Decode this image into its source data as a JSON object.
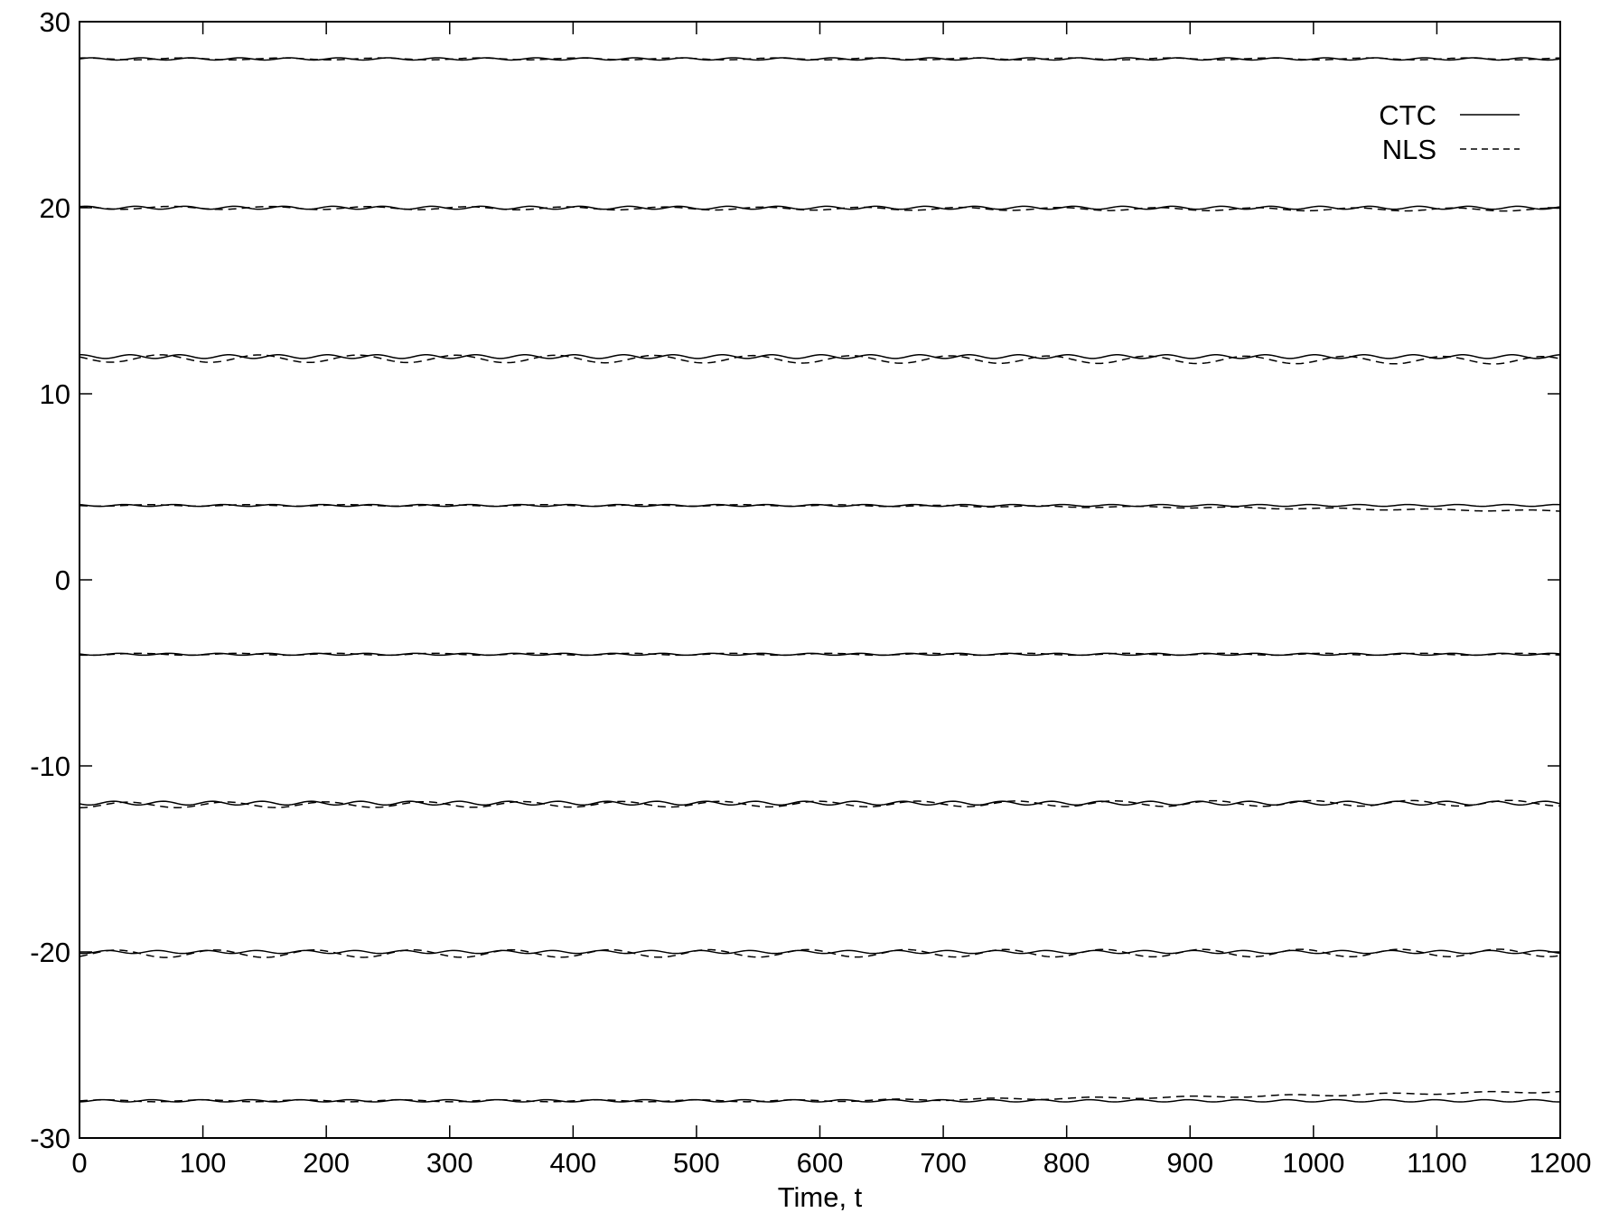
{
  "chart_data": {
    "type": "line",
    "title": "",
    "xlabel": "Time, t",
    "ylabel": "",
    "xlim": [
      0,
      1200
    ],
    "ylim": [
      -30,
      30
    ],
    "xticks": [
      0,
      100,
      200,
      300,
      400,
      500,
      600,
      700,
      800,
      900,
      1000,
      1100,
      1200
    ],
    "yticks": [
      -30,
      -20,
      -10,
      0,
      10,
      20,
      30
    ],
    "grid": false,
    "legend_position": "top-right",
    "legend": [
      "CTC",
      "NLS"
    ],
    "series": [
      {
        "name": "CTC",
        "style": "solid",
        "color": "#000000",
        "oscillation_period": 40,
        "tracks": [
          {
            "x": [
              0,
              1200
            ],
            "y": [
              28,
              28
            ],
            "amplitude": 0.06
          },
          {
            "x": [
              0,
              1200
            ],
            "y": [
              20,
              20
            ],
            "amplitude": 0.08
          },
          {
            "x": [
              0,
              1200
            ],
            "y": [
              12,
              12
            ],
            "amplitude": 0.1
          },
          {
            "x": [
              0,
              1200
            ],
            "y": [
              4,
              4
            ],
            "amplitude": 0.05
          },
          {
            "x": [
              0,
              1200
            ],
            "y": [
              -4,
              -4
            ],
            "amplitude": 0.05
          },
          {
            "x": [
              0,
              1200
            ],
            "y": [
              -12,
              -12
            ],
            "amplitude": 0.1
          },
          {
            "x": [
              0,
              1200
            ],
            "y": [
              -20,
              -20
            ],
            "amplitude": 0.08
          },
          {
            "x": [
              0,
              1200
            ],
            "y": [
              -28,
              -28
            ],
            "amplitude": 0.06
          }
        ]
      },
      {
        "name": "NLS",
        "style": "dashed",
        "color": "#000000",
        "oscillation_period": 80,
        "tracks": [
          {
            "x": [
              0,
              1200
            ],
            "y": [
              28,
              28
            ],
            "amplitude": 0.05
          },
          {
            "x": [
              0,
              1200
            ],
            "y": [
              20,
              19.9
            ],
            "amplitude": 0.08
          },
          {
            "x": [
              0,
              1200
            ],
            "y": [
              11.9,
              11.8
            ],
            "amplitude": 0.2
          },
          {
            "x": [
              0,
              600,
              900,
              1200
            ],
            "y": [
              4,
              4,
              3.9,
              3.7
            ],
            "amplitude": 0.04
          },
          {
            "x": [
              0,
              1200
            ],
            "y": [
              -4,
              -4
            ],
            "amplitude": 0.05
          },
          {
            "x": [
              0,
              1200
            ],
            "y": [
              -12.1,
              -12
            ],
            "amplitude": 0.15
          },
          {
            "x": [
              0,
              1200
            ],
            "y": [
              -20.1,
              -20.05
            ],
            "amplitude": 0.2
          },
          {
            "x": [
              0,
              600,
              900,
              1200
            ],
            "y": [
              -28,
              -28,
              -27.8,
              -27.5
            ],
            "amplitude": 0.05
          }
        ]
      }
    ]
  }
}
